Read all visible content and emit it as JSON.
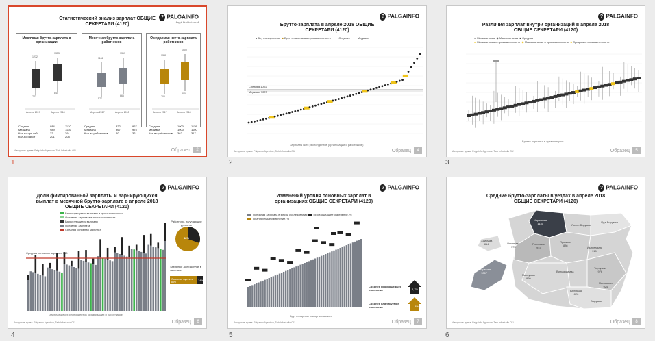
{
  "slides": [
    {
      "num": "1",
      "logo": "PALGAINFO",
      "logo_tag": "Anyyti Ruchkoi rusuril",
      "title": "Статистический анализ зарплат ОБЩИЕ СЕКРЕТАРИ (4120)",
      "panels": [
        {
          "title": "Месячная брутто-зарплата в организации",
          "top_a": "1272",
          "top_b": "1353",
          "bot_a": "747",
          "bot_b": "844",
          "mid_a": "1016",
          "mid_b": "1046"
        },
        {
          "title": "Месячная брутто-зарплата работников",
          "top_a": "1186",
          "top_b": "1369",
          "bot_a": "577",
          "bot_b": "665",
          "mid_a": "823",
          "mid_b": "950"
        },
        {
          "title": "Ожидаемая нетто-зарплата работников",
          "top_a": "1340",
          "top_b": "1500",
          "bot_a": "700",
          "bot_b": "800",
          "mid_a": "1000",
          "mid_b": "1100"
        }
      ],
      "x_a": "Апрель 2017",
      "x_b": "Апрель 2018",
      "stats": [
        {
          "label": "Средняя",
          "a": "984",
          "b": "1120"
        },
        {
          "label": "Медиана",
          "a": "989",
          "b": "1110"
        },
        {
          "label": "Кол-во орг-ций",
          "a": "32",
          "b": "39"
        },
        {
          "label": "Кол-во работ",
          "a": "201",
          "b": "208"
        }
      ],
      "stats2": [
        {
          "label": "Средняя",
          "a": "822",
          "b": "967"
        },
        {
          "label": "Медиана",
          "a": "967",
          "b": "975"
        },
        {
          "label": "Кол-во работников",
          "a": "40",
          "b": "32"
        }
      ],
      "stats3": [
        {
          "label": "Средняя",
          "a": "1000",
          "b": "1116"
        },
        {
          "label": "Медиана",
          "a": "1000",
          "b": "1100"
        },
        {
          "label": "Кол-во работников",
          "a": "362",
          "b": "317"
        }
      ],
      "page": "2"
    },
    {
      "num": "2",
      "title": "Брутто-зарплата в апреле 2018 ОБЩИЕ СЕКРЕТАРИ (4120)",
      "legend": [
        "Брутто-зарплаты",
        "Брутто-зарплата в промышленности",
        "Средняя",
        "Медиана"
      ],
      "avg": "Средняя 1051",
      "median": "Медиана 1070",
      "xlabel": "Зарплаты всех респондентов (организаций и работников)",
      "page": "4"
    },
    {
      "num": "3",
      "title": "Различия зарплат внутри организаций в апреле 2018 ОБЩИЕ СЕКРЕТАРИ (4120)",
      "legend": [
        "Минимальная",
        "Максимальная",
        "Средняя",
        "Минимальная в промышленности",
        "Максимальная в промышленности",
        "Средняя в промышленности"
      ],
      "xlabel": "Брутто-зарплата в организациях",
      "page": "5"
    },
    {
      "num": "4",
      "title": "Доли фиксированной зарплаты и варьирующихся выплат в месячной брутто-зарплате в апреле 2018 ОБЩИЕ СЕКРЕТАРИ (4120)",
      "legend": [
        "Варьирующиеся выплаты в промышленности",
        "Основная зарплата в промышленности",
        "Варьирующиеся выплаты",
        "Основная зарплата",
        "Средняя основная зарплата"
      ],
      "avg_base": "Средняя основная зарплата 968",
      "pie_title": "Работники, получающие доплаты",
      "pie_value": "38%",
      "share_title": "Удельные доли доплат в зарплате",
      "share_label": "Основная зарплата 86%",
      "share_value": "14%",
      "xlabel": "Зарплаты всех респондентов (организаций и работников)",
      "page": "6"
    },
    {
      "num": "5",
      "title": "Изменений уровня основных зарплат в организациях ОБЩИЕ СЕКРЕТАРИ (4120)",
      "legend": [
        "Основная зарплата в месяц исследования",
        "Произошедшее изменение, %",
        "Планируемые изменение, %"
      ],
      "happened_label": "Среднее произошедшее изменение",
      "happened_value": "4,7%",
      "planned_label": "Среднее планируемое изменение",
      "planned_value": "3%",
      "xlabel": "Брутто-зарплаты в организациях",
      "page": "7"
    },
    {
      "num": "6",
      "title": "Средние брутто-зарплаты в уездах в апреле 2018 ОБЩИЕ СЕКРЕТАРИ (4120)",
      "counties": [
        {
          "name": "Харьюмаа",
          "value": "1140"
        },
        {
          "name": "Ляэне-Вирумаа",
          "value": ""
        },
        {
          "name": "Ида-Вирумаа",
          "value": ""
        },
        {
          "name": "Рапламаа",
          "value": "945"
        },
        {
          "name": "Ярвамаа",
          "value": "886"
        },
        {
          "name": "Ляэнемаа",
          "value": "975"
        },
        {
          "name": "Хийумаа",
          "value": "814"
        },
        {
          "name": "Сааремаа",
          "value": "1067"
        },
        {
          "name": "Пярнумаа",
          "value": "960"
        },
        {
          "name": "Йыгевамаа",
          "value": "915"
        },
        {
          "name": "Вильяндимаа",
          "value": ""
        },
        {
          "name": "Тартумаа",
          "value": "976"
        },
        {
          "name": "Пылвамаа",
          "value": "924"
        },
        {
          "name": "Валгамаа",
          "value": "826"
        },
        {
          "name": "Вырумаа",
          "value": ""
        }
      ],
      "page": "8"
    }
  ],
  "footer": "Авторские права: Palgainfo Agentuur, Tark Infostudio OÜ",
  "watermark": "Образец",
  "colors": {
    "accent": "#d9472b",
    "gold": "#b8860b",
    "yellow": "#f0c419",
    "dark": "#333333",
    "gray": "#7a7f88",
    "green": "#3cb44b",
    "red": "#c0392b"
  }
}
